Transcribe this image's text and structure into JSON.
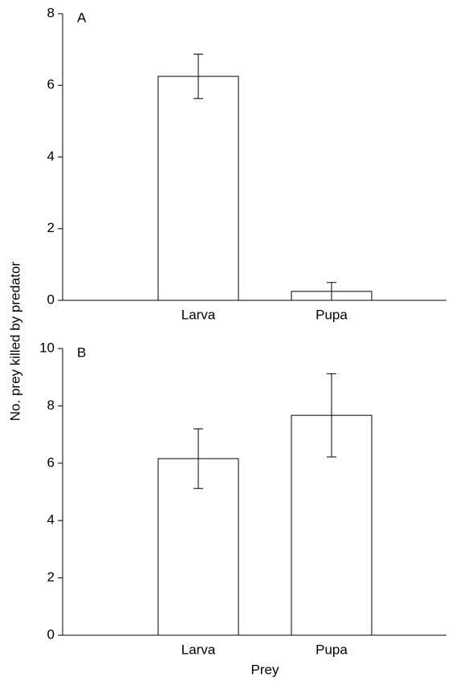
{
  "chart_data": [
    {
      "type": "bar",
      "panel_label": "A",
      "ylabel": "No. prey killed by predator",
      "categories": [
        "Larva",
        "Pupa"
      ],
      "values": [
        6.25,
        0.25
      ],
      "errors": [
        0.62,
        0.25
      ],
      "color": "#ffffff",
      "ylim": [
        0,
        8
      ],
      "yticks": [
        0,
        2,
        4,
        6,
        8
      ]
    },
    {
      "type": "bar",
      "panel_label": "B",
      "xlabel": "Prey",
      "categories": [
        "Larva",
        "Pupa"
      ],
      "values": [
        6.16,
        7.67
      ],
      "errors": [
        1.04,
        1.45
      ],
      "color": "#ffffff",
      "ylim": [
        0,
        10
      ],
      "yticks": [
        0,
        2,
        4,
        6,
        8,
        10
      ]
    }
  ]
}
